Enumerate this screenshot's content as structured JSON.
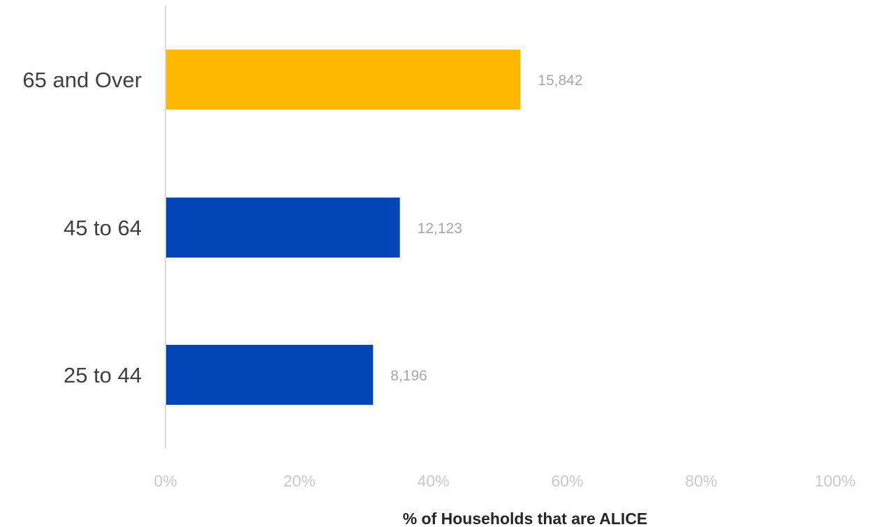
{
  "chart_data": {
    "type": "bar",
    "orientation": "horizontal",
    "categories": [
      "65 and Over",
      "45 to 64",
      "25 to 44"
    ],
    "values": [
      53,
      35,
      31
    ],
    "data_labels": [
      "15,842",
      "12,123",
      "8,196"
    ],
    "colors": [
      "#FFB900",
      "#0046B4",
      "#0046B4"
    ],
    "xlabel": "% of Households that are ALICE",
    "xlim": [
      0,
      100
    ],
    "xticks": [
      0,
      20,
      40,
      60,
      80,
      100
    ],
    "xtick_labels": [
      "0%",
      "20%",
      "40%",
      "60%",
      "80%",
      "100%"
    ],
    "grid": false,
    "legend": "none"
  }
}
